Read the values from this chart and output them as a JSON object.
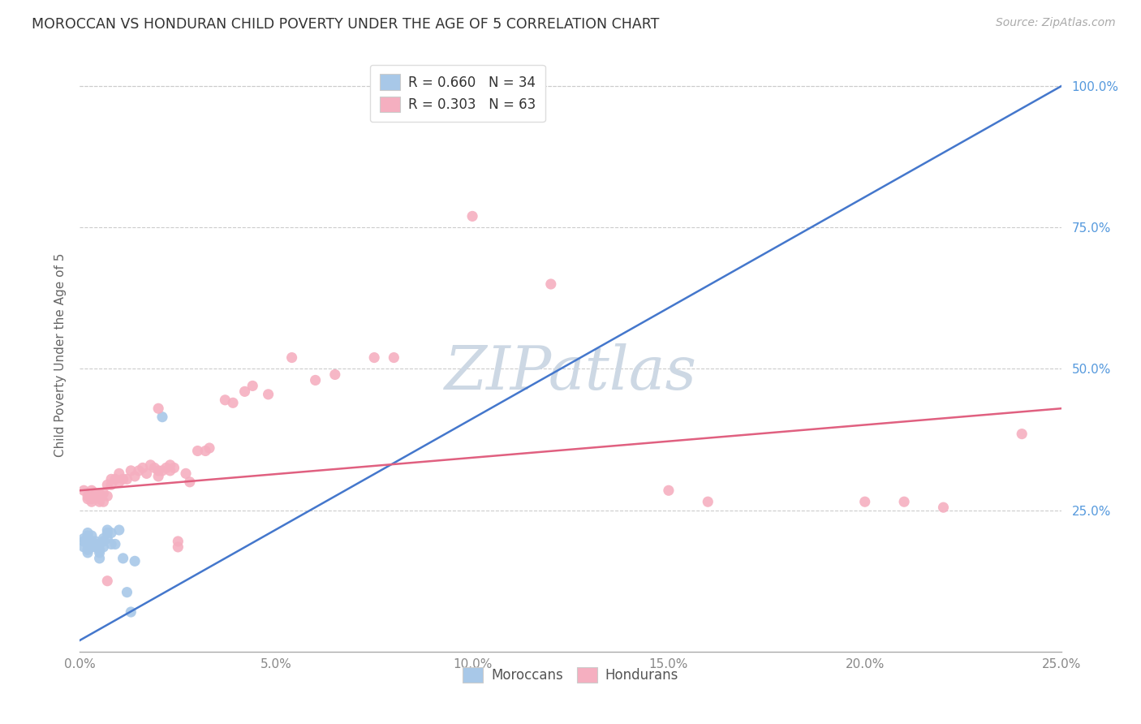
{
  "title": "MOROCCAN VS HONDURAN CHILD POVERTY UNDER THE AGE OF 5 CORRELATION CHART",
  "source": "Source: ZipAtlas.com",
  "ylabel": "Child Poverty Under the Age of 5",
  "xlim": [
    0.0,
    0.25
  ],
  "ylim": [
    0.0,
    1.05
  ],
  "xtick_vals": [
    0.0,
    0.05,
    0.1,
    0.15,
    0.2,
    0.25
  ],
  "xtick_labels": [
    "0.0%",
    "5.0%",
    "10.0%",
    "15.0%",
    "20.0%",
    "25.0%"
  ],
  "ytick_vals": [
    0.25,
    0.5,
    0.75,
    1.0
  ],
  "ytick_labels": [
    "25.0%",
    "50.0%",
    "75.0%",
    "100.0%"
  ],
  "moroccan_color": "#a8c8e8",
  "honduran_color": "#f5afc0",
  "moroccan_line_color": "#4477cc",
  "honduran_line_color": "#e06080",
  "background_color": "#ffffff",
  "grid_color": "#cccccc",
  "watermark": "ZIPatlas",
  "watermark_color": "#cdd8e4",
  "legend1_label": "R = 0.660   N = 34",
  "legend2_label": "R = 0.303   N = 63",
  "bottom_legend1": "Moroccans",
  "bottom_legend2": "Hondurans",
  "moroccan_line_x0": 0.0,
  "moroccan_line_y0": 0.02,
  "moroccan_line_x1": 0.25,
  "moroccan_line_y1": 1.0,
  "honduran_line_x0": 0.0,
  "honduran_line_y0": 0.285,
  "honduran_line_x1": 0.25,
  "honduran_line_y1": 0.43,
  "moroccan_x": [
    0.001,
    0.001,
    0.001,
    0.002,
    0.002,
    0.002,
    0.002,
    0.002,
    0.003,
    0.003,
    0.003,
    0.003,
    0.004,
    0.004,
    0.004,
    0.005,
    0.005,
    0.005,
    0.005,
    0.006,
    0.006,
    0.006,
    0.007,
    0.007,
    0.007,
    0.008,
    0.008,
    0.009,
    0.01,
    0.011,
    0.012,
    0.013,
    0.014,
    0.021
  ],
  "moroccan_y": [
    0.195,
    0.2,
    0.185,
    0.21,
    0.205,
    0.19,
    0.18,
    0.175,
    0.195,
    0.185,
    0.205,
    0.19,
    0.19,
    0.185,
    0.195,
    0.19,
    0.18,
    0.175,
    0.165,
    0.195,
    0.185,
    0.2,
    0.21,
    0.215,
    0.2,
    0.21,
    0.19,
    0.19,
    0.215,
    0.165,
    0.105,
    0.07,
    0.16,
    0.415
  ],
  "honduran_x": [
    0.001,
    0.002,
    0.002,
    0.003,
    0.003,
    0.003,
    0.004,
    0.004,
    0.005,
    0.005,
    0.005,
    0.006,
    0.006,
    0.007,
    0.007,
    0.008,
    0.008,
    0.009,
    0.01,
    0.01,
    0.011,
    0.012,
    0.013,
    0.014,
    0.015,
    0.016,
    0.017,
    0.018,
    0.019,
    0.02,
    0.02,
    0.021,
    0.022,
    0.023,
    0.023,
    0.024,
    0.025,
    0.027,
    0.028,
    0.03,
    0.032,
    0.033,
    0.037,
    0.039,
    0.042,
    0.044,
    0.048,
    0.054,
    0.06,
    0.065,
    0.075,
    0.08,
    0.1,
    0.12,
    0.15,
    0.16,
    0.2,
    0.21,
    0.22,
    0.24,
    0.007,
    0.02,
    0.025
  ],
  "honduran_y": [
    0.285,
    0.275,
    0.27,
    0.285,
    0.265,
    0.27,
    0.28,
    0.275,
    0.28,
    0.27,
    0.265,
    0.28,
    0.265,
    0.275,
    0.295,
    0.305,
    0.295,
    0.305,
    0.3,
    0.315,
    0.305,
    0.305,
    0.32,
    0.31,
    0.32,
    0.325,
    0.315,
    0.33,
    0.325,
    0.32,
    0.31,
    0.32,
    0.325,
    0.33,
    0.32,
    0.325,
    0.195,
    0.315,
    0.3,
    0.355,
    0.355,
    0.36,
    0.445,
    0.44,
    0.46,
    0.47,
    0.455,
    0.52,
    0.48,
    0.49,
    0.52,
    0.52,
    0.77,
    0.65,
    0.285,
    0.265,
    0.265,
    0.265,
    0.255,
    0.385,
    0.125,
    0.43,
    0.185
  ]
}
